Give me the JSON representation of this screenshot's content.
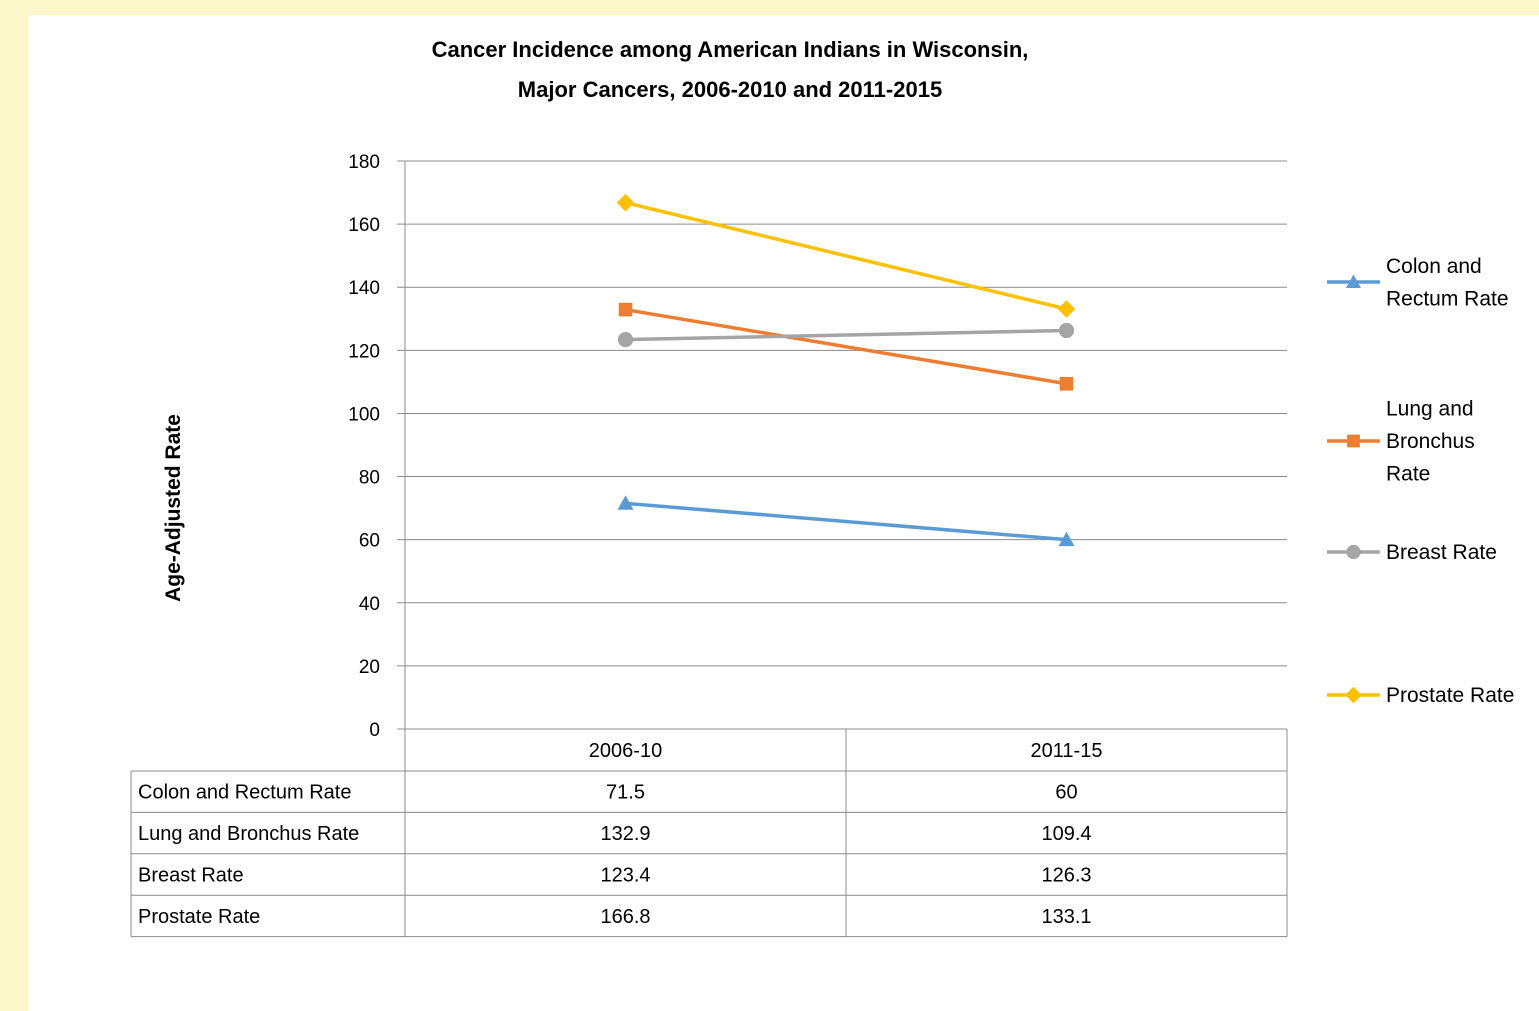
{
  "chart_data": {
    "type": "line",
    "title_line1": "Cancer Incidence among American Indians in Wisconsin,",
    "title_line2": "Major Cancers, 2006-2010 and 2011-2015",
    "ylabel": "Age-Adjusted Rate",
    "xlabel": "",
    "categories": [
      "2006-10",
      "2011-15"
    ],
    "ylim": [
      0,
      180
    ],
    "yticks": [
      0,
      20,
      40,
      60,
      80,
      100,
      120,
      140,
      160,
      180
    ],
    "grid": true,
    "legend_position": "right",
    "series": [
      {
        "name": "Colon and Rectum Rate",
        "legend_lines": [
          "Colon and",
          "Rectum Rate"
        ],
        "color": "#5b9bd5",
        "marker": "triangle",
        "values": [
          71.5,
          60
        ]
      },
      {
        "name": "Lung and Bronchus Rate",
        "legend_lines": [
          "Lung and",
          "Bronchus",
          "Rate"
        ],
        "color": "#ed7d31",
        "marker": "square",
        "values": [
          132.9,
          109.4
        ]
      },
      {
        "name": "Breast Rate",
        "legend_lines": [
          "Breast Rate"
        ],
        "color": "#a5a5a5",
        "marker": "circle",
        "values": [
          123.4,
          126.3
        ]
      },
      {
        "name": "Prostate Rate",
        "legend_lines": [
          "Prostate Rate"
        ],
        "color": "#ffc000",
        "marker": "diamond",
        "values": [
          166.8,
          133.1
        ]
      }
    ],
    "data_table": {
      "rows": [
        {
          "label": "Colon and Rectum Rate",
          "values": [
            "71.5",
            "60"
          ]
        },
        {
          "label": "Lung and Bronchus Rate",
          "values": [
            "132.9",
            "109.4"
          ]
        },
        {
          "label": "Breast Rate",
          "values": [
            "123.4",
            "126.3"
          ]
        },
        {
          "label": "Prostate Rate",
          "values": [
            "166.8",
            "133.1"
          ]
        }
      ]
    }
  }
}
